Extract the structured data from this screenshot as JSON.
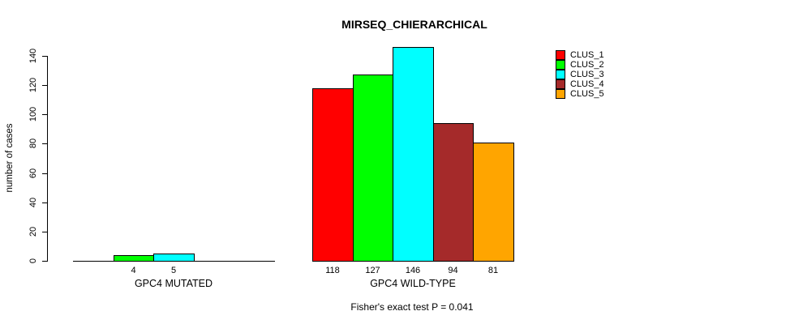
{
  "chart_data": {
    "type": "bar",
    "title": "MIRSEQ_CHIERARCHICAL",
    "ylabel": "number of cases",
    "xlabel": "",
    "ylim": [
      0,
      140
    ],
    "yticks": [
      "0",
      "20",
      "40",
      "60",
      "80",
      "100",
      "120",
      "140"
    ],
    "ytick_values": [
      0,
      20,
      40,
      60,
      80,
      100,
      120,
      140
    ],
    "grid": "off",
    "legend_position": "top-right",
    "series_names": [
      "CLUS_1",
      "CLUS_2",
      "CLUS_3",
      "CLUS_4",
      "CLUS_5"
    ],
    "colors": [
      "#FF0000",
      "#00FF00",
      "#00FFFF",
      "#A52A2A",
      "#FFA500"
    ],
    "groups": [
      {
        "label": "GPC4 MUTATED",
        "values": [
          0,
          4,
          5,
          0,
          0
        ]
      },
      {
        "label": "GPC4 WILD-TYPE",
        "values": [
          118,
          127,
          146,
          94,
          81
        ]
      }
    ],
    "bar_value_labels": [
      [
        "",
        "4",
        "5",
        "",
        ""
      ],
      [
        "118",
        "127",
        "146",
        "94",
        "81"
      ]
    ],
    "annotation": "Fisher's exact test P = 0.041"
  }
}
